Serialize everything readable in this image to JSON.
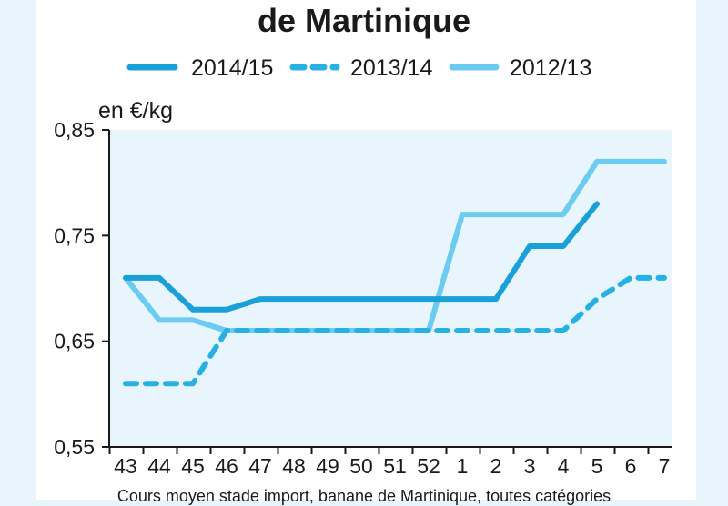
{
  "title": "de Martinique",
  "caption": "Cours moyen stade import, banane de Martinique, toutes catégories",
  "colors": {
    "plot_background": "#e8f5fc",
    "axis": "#1a1a1a",
    "series_2014_15": "#1aa0d8",
    "series_2013_14": "#26b0e4",
    "series_2012_13": "#6ccbf0"
  },
  "chart_data": {
    "type": "line",
    "title": "de Martinique",
    "ylabel": "en €/kg",
    "xlabel": "",
    "ylim": [
      0.55,
      0.85
    ],
    "yticks": [
      0.55,
      0.65,
      0.75,
      0.85
    ],
    "ytick_labels": [
      "0,55",
      "0,65",
      "0,75",
      "0,85"
    ],
    "legend_position": "top",
    "grid": false,
    "categories": [
      "43",
      "44",
      "45",
      "46",
      "47",
      "48",
      "49",
      "50",
      "51",
      "52",
      "1",
      "2",
      "3",
      "4",
      "5",
      "6",
      "7"
    ],
    "series": [
      {
        "name": "2014/15",
        "style": "solid",
        "values": [
          0.71,
          0.71,
          0.68,
          0.68,
          0.69,
          0.69,
          0.69,
          0.69,
          0.69,
          0.69,
          0.69,
          0.69,
          0.74,
          0.74,
          0.78,
          null,
          null
        ]
      },
      {
        "name": "2013/14",
        "style": "dashed",
        "values": [
          0.61,
          0.61,
          0.61,
          0.66,
          0.66,
          0.66,
          0.66,
          0.66,
          0.66,
          0.66,
          0.66,
          0.66,
          0.66,
          0.66,
          0.69,
          0.71,
          0.71
        ]
      },
      {
        "name": "2012/13",
        "style": "solid",
        "values": [
          0.71,
          0.67,
          0.67,
          0.66,
          0.66,
          0.66,
          0.66,
          0.66,
          0.66,
          0.66,
          0.77,
          0.77,
          0.77,
          0.77,
          0.82,
          0.82,
          0.82
        ]
      }
    ]
  }
}
